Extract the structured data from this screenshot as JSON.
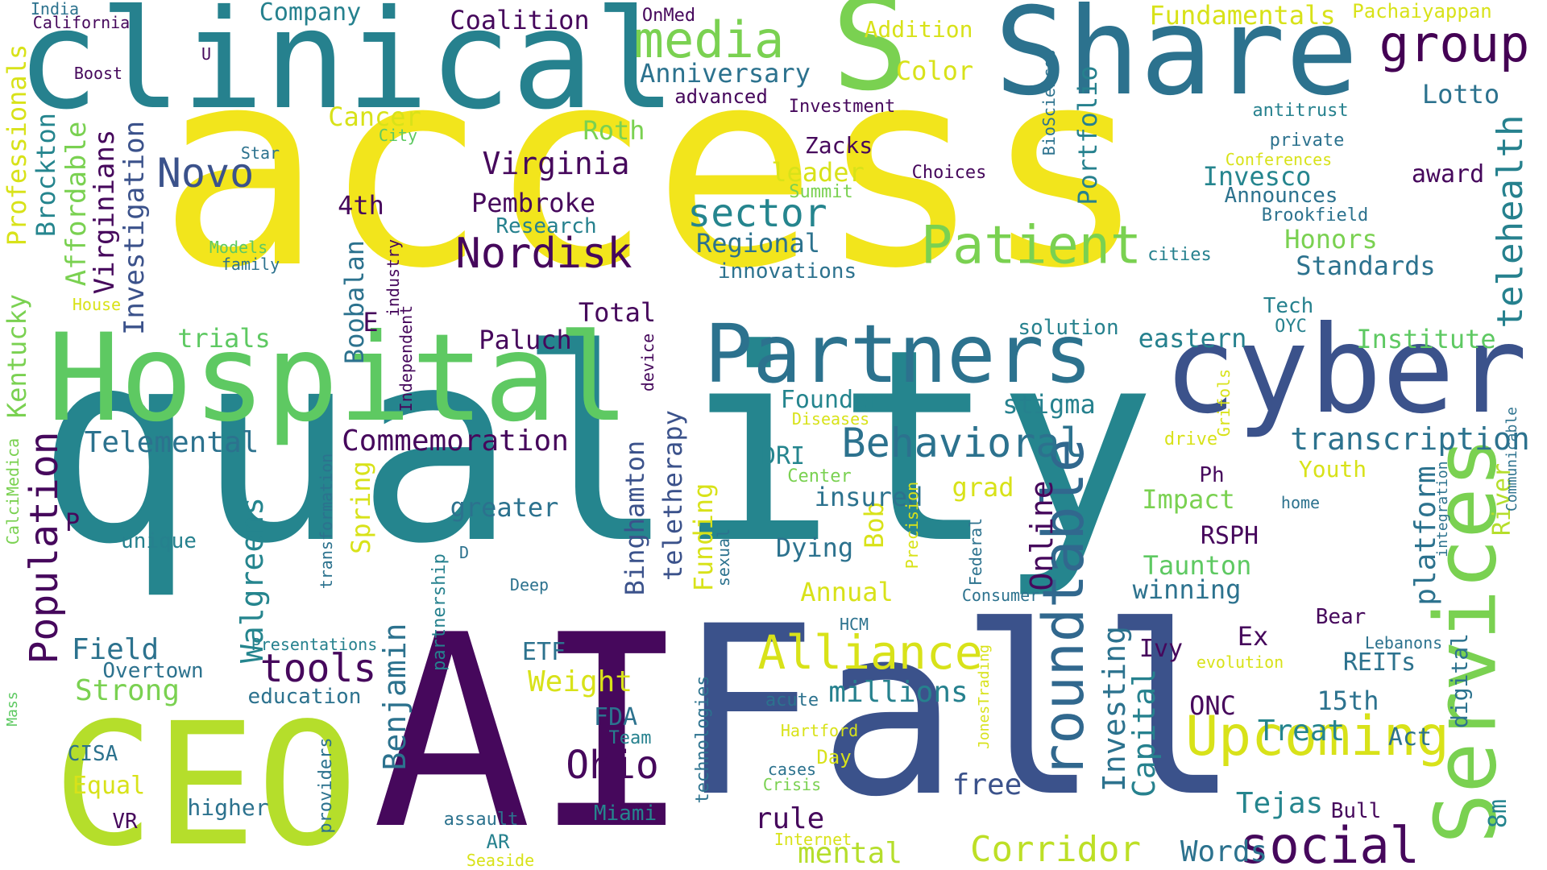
{
  "words": [
    {
      "text": "access",
      "color": "#f2e51c",
      "rot": 0
    },
    {
      "text": "quality",
      "color": "#25858e",
      "rot": 0
    },
    {
      "text": "AI",
      "color": "#46085c",
      "rot": 0
    },
    {
      "text": "Fall",
      "color": "#3b528b",
      "rot": 0
    },
    {
      "text": "CEO",
      "color": "#b5de2b",
      "rot": 0
    },
    {
      "text": "clinical",
      "color": "#26818e",
      "rot": 0
    },
    {
      "text": "Share",
      "color": "#2c728e",
      "rot": 0
    },
    {
      "text": "S",
      "color": "#7ad151",
      "rot": 0
    },
    {
      "text": "Hospital",
      "color": "#5ec962",
      "rot": 0
    },
    {
      "text": "cyber",
      "color": "#3b528b",
      "rot": 0
    },
    {
      "text": "Partners",
      "color": "#2c728e",
      "rot": 0
    },
    {
      "text": "Services",
      "color": "#7ad151",
      "rot": 90
    },
    {
      "text": "roundtable",
      "color": "#31688e",
      "rot": 90
    },
    {
      "text": "Upcoming",
      "color": "#d8e219",
      "rot": 0
    },
    {
      "text": "Alliance",
      "color": "#d8e219",
      "rot": 0
    },
    {
      "text": "Patient",
      "color": "#7ad151",
      "rot": 0
    },
    {
      "text": "group",
      "color": "#440154",
      "rot": 0
    },
    {
      "text": "media",
      "color": "#7ad151",
      "rot": 0
    },
    {
      "text": "social",
      "color": "#46085c",
      "rot": 0
    },
    {
      "text": "Corridor",
      "color": "#bddf26",
      "rot": 0
    },
    {
      "text": "Population",
      "color": "#46085c",
      "rot": 90
    },
    {
      "text": "Nordisk",
      "color": "#46085c",
      "rot": 0
    },
    {
      "text": "Behavioral",
      "color": "#2c728e",
      "rot": 0
    },
    {
      "text": "telehealth",
      "color": "#26818e",
      "rot": 90
    },
    {
      "text": "sector",
      "color": "#25858e",
      "rot": 0
    },
    {
      "text": "Novo",
      "color": "#3b528b",
      "rot": 0
    },
    {
      "text": "Ohio",
      "color": "#46085c",
      "rot": 0
    },
    {
      "text": "tools",
      "color": "#46085c",
      "rot": 0
    },
    {
      "text": "Investing",
      "color": "#2c728e",
      "rot": 90
    },
    {
      "text": "Capital",
      "color": "#26818e",
      "rot": 90
    },
    {
      "text": "Walgreens",
      "color": "#25858e",
      "rot": 90
    },
    {
      "text": "Benjamin",
      "color": "#2c728e",
      "rot": 90
    },
    {
      "text": "Online",
      "color": "#46085c",
      "rot": 90
    },
    {
      "text": "platform",
      "color": "#2c728e",
      "rot": 90
    },
    {
      "text": "transcription",
      "color": "#2c728e",
      "rot": 0
    },
    {
      "text": "Virginia",
      "color": "#46085c",
      "rot": 0
    },
    {
      "text": "Commemoration",
      "color": "#46085c",
      "rot": 0
    },
    {
      "text": "Telemental",
      "color": "#2c728e",
      "rot": 0
    },
    {
      "text": "Strong",
      "color": "#7ad151",
      "rot": 0
    },
    {
      "text": "Field",
      "color": "#2c728e",
      "rot": 0
    },
    {
      "text": "Weight",
      "color": "#d8e219",
      "rot": 0
    },
    {
      "text": "Tejas",
      "color": "#25858e",
      "rot": 0
    },
    {
      "text": "Treat",
      "color": "#25858e",
      "rot": 0
    },
    {
      "text": "Words",
      "color": "#2c728e",
      "rot": 0
    },
    {
      "text": "mental",
      "color": "#b5de2b",
      "rot": 0
    },
    {
      "text": "free",
      "color": "#3b528b",
      "rot": 0
    },
    {
      "text": "rule",
      "color": "#46085c",
      "rot": 0
    },
    {
      "text": "millions",
      "color": "#26818e",
      "rot": 0
    },
    {
      "text": "Affordable",
      "color": "#7ad151",
      "rot": 90
    },
    {
      "text": "Virginians",
      "color": "#46085c",
      "rot": 90
    },
    {
      "text": "Investigation",
      "color": "#3b528b",
      "rot": 90
    },
    {
      "text": "Brockton",
      "color": "#25858e",
      "rot": 90
    },
    {
      "text": "Professionals",
      "color": "#d8e219",
      "rot": 90
    },
    {
      "text": "Kentucky",
      "color": "#7ad151",
      "rot": 90
    },
    {
      "text": "Boobalan",
      "color": "#2c728e",
      "rot": 90
    },
    {
      "text": "telehealth",
      "color": "#26818e",
      "rot": 90
    },
    {
      "text": "teletherapy",
      "color": "#3b528b",
      "rot": 90
    },
    {
      "text": "Binghamton",
      "color": "#3b528b",
      "rot": 90
    },
    {
      "text": "Funding",
      "color": "#d8e219",
      "rot": 90
    },
    {
      "text": "Bob",
      "color": "#d8e219",
      "rot": 90
    },
    {
      "text": "Spring",
      "color": "#d8e219",
      "rot": 90
    },
    {
      "text": "Portfolio",
      "color": "#26818e",
      "rot": 90
    },
    {
      "text": "digital",
      "color": "#2c728e",
      "rot": 90
    },
    {
      "text": "River",
      "color": "#b5de2b",
      "rot": 90
    },
    {
      "text": "8m",
      "color": "#25858e",
      "rot": 90
    },
    {
      "text": "Company",
      "color": "#26818e",
      "rot": 0
    },
    {
      "text": "Coalition",
      "color": "#46085c",
      "rot": 0
    },
    {
      "text": "Fundamentals",
      "color": "#d8e219",
      "rot": 0
    },
    {
      "text": "Anniversary",
      "color": "#2c728e",
      "rot": 0
    },
    {
      "text": "Color",
      "color": "#d8e219",
      "rot": 0
    },
    {
      "text": "Addition",
      "color": "#d8e219",
      "rot": 0
    },
    {
      "text": "Cancer",
      "color": "#d8e219",
      "rot": 0
    },
    {
      "text": "Roth",
      "color": "#7ad151",
      "rot": 0
    },
    {
      "text": "Lotto",
      "color": "#2c728e",
      "rot": 0
    },
    {
      "text": "Pembroke",
      "color": "#46085c",
      "rot": 0
    },
    {
      "text": "4th",
      "color": "#46085c",
      "rot": 0
    },
    {
      "text": "Regional",
      "color": "#2c728e",
      "rot": 0
    },
    {
      "text": "leader",
      "color": "#d8e219",
      "rot": 0
    },
    {
      "text": "Zacks",
      "color": "#46085c",
      "rot": 0
    },
    {
      "text": "Invesco",
      "color": "#25858e",
      "rot": 0
    },
    {
      "text": "award",
      "color": "#46085c",
      "rot": 0
    },
    {
      "text": "Honors",
      "color": "#7ad151",
      "rot": 0
    },
    {
      "text": "Standards",
      "color": "#2c728e",
      "rot": 0
    },
    {
      "text": "Total",
      "color": "#46085c",
      "rot": 0
    },
    {
      "text": "Paluch",
      "color": "#46085c",
      "rot": 0
    },
    {
      "text": "trials",
      "color": "#5ec962",
      "rot": 0
    },
    {
      "text": "eastern",
      "color": "#26818e",
      "rot": 0
    },
    {
      "text": "Institute",
      "color": "#5ec962",
      "rot": 0
    },
    {
      "text": "stigma",
      "color": "#26818e",
      "rot": 0
    },
    {
      "text": "Founder",
      "color": "#25858e",
      "rot": 0
    },
    {
      "text": "DRI",
      "color": "#25858e",
      "rot": 0
    },
    {
      "text": "insured",
      "color": "#2c728e",
      "rot": 0
    },
    {
      "text": "Dying",
      "color": "#2c728e",
      "rot": 0
    },
    {
      "text": "greater",
      "color": "#2c728e",
      "rot": 0
    },
    {
      "text": "grad",
      "color": "#d8e219",
      "rot": 0
    },
    {
      "text": "Impact",
      "color": "#7ad151",
      "rot": 0
    },
    {
      "text": "RSPH",
      "color": "#46085c",
      "rot": 0
    },
    {
      "text": "Taunton",
      "color": "#5ec962",
      "rot": 0
    },
    {
      "text": "winning",
      "color": "#2c728e",
      "rot": 0
    },
    {
      "text": "Annual",
      "color": "#d8e219",
      "rot": 0
    },
    {
      "text": "ETF",
      "color": "#2c728e",
      "rot": 0
    },
    {
      "text": "FDA",
      "color": "#2c728e",
      "rot": 0
    },
    {
      "text": "Ex",
      "color": "#46085c",
      "rot": 0
    },
    {
      "text": "Ivy",
      "color": "#46085c",
      "rot": 0
    },
    {
      "text": "ONC",
      "color": "#46085c",
      "rot": 0
    },
    {
      "text": "15th",
      "color": "#2c728e",
      "rot": 0
    },
    {
      "text": "REITs",
      "color": "#2c728e",
      "rot": 0
    },
    {
      "text": "Act",
      "color": "#2c728e",
      "rot": 0
    },
    {
      "text": "Bear",
      "color": "#46085c",
      "rot": 0
    },
    {
      "text": "Youth",
      "color": "#d8e219",
      "rot": 0
    },
    {
      "text": "Bull",
      "color": "#46085c",
      "rot": 0
    },
    {
      "text": "Equal",
      "color": "#d8e219",
      "rot": 0
    },
    {
      "text": "E",
      "color": "#46085c",
      "rot": 0
    },
    {
      "text": "P",
      "color": "#46085c",
      "rot": 0
    },
    {
      "text": "Ph",
      "color": "#46085c",
      "rot": 0
    },
    {
      "text": "CISA",
      "color": "#2c728e",
      "rot": 0
    },
    {
      "text": "VR",
      "color": "#46085c",
      "rot": 0
    },
    {
      "text": "higher",
      "color": "#2c728e",
      "rot": 0
    },
    {
      "text": "education",
      "color": "#2c728e",
      "rot": 0
    },
    {
      "text": "Overtown",
      "color": "#2c728e",
      "rot": 0
    },
    {
      "text": "unique",
      "color": "#26818e",
      "rot": 0
    },
    {
      "text": "Presentations",
      "color": "#26818e",
      "rot": 0
    },
    {
      "text": "Deep",
      "color": "#2c728e",
      "rot": 0
    },
    {
      "text": "Miami",
      "color": "#25858e",
      "rot": 0
    },
    {
      "text": "Team",
      "color": "#26818e",
      "rot": 0
    },
    {
      "text": "AR",
      "color": "#26818e",
      "rot": 0
    },
    {
      "text": "assault",
      "color": "#2c728e",
      "rot": 0
    },
    {
      "text": "Seaside",
      "color": "#d8e219",
      "rot": 0
    },
    {
      "text": "Internet",
      "color": "#d8e219",
      "rot": 0
    },
    {
      "text": "cases",
      "color": "#2c728e",
      "rot": 0
    },
    {
      "text": "Crisis",
      "color": "#7ad151",
      "rot": 0
    },
    {
      "text": "Day",
      "color": "#d8e219",
      "rot": 0
    },
    {
      "text": "Hartford",
      "color": "#d8e219",
      "rot": 0
    },
    {
      "text": "acute",
      "color": "#2c728e",
      "rot": 0
    },
    {
      "text": "HCM",
      "color": "#2c728e",
      "rot": 0
    },
    {
      "text": "Center",
      "color": "#7ad151",
      "rot": 0
    },
    {
      "text": "Diseases",
      "color": "#d8e219",
      "rot": 0
    },
    {
      "text": "drive",
      "color": "#d8e219",
      "rot": 0
    },
    {
      "text": "Consumer",
      "color": "#2c728e",
      "rot": 0
    },
    {
      "text": "home",
      "color": "#2c728e",
      "rot": 0
    },
    {
      "text": "evolution",
      "color": "#d8e219",
      "rot": 0
    },
    {
      "text": "Lebanons",
      "color": "#2c728e",
      "rot": 0
    },
    {
      "text": "solution",
      "color": "#26818e",
      "rot": 0
    },
    {
      "text": "OYC",
      "color": "#26818e",
      "rot": 0
    },
    {
      "text": "Tech",
      "color": "#26818e",
      "rot": 0
    },
    {
      "text": "cities",
      "color": "#26818e",
      "rot": 0
    },
    {
      "text": "innovations",
      "color": "#2c728e",
      "rot": 0
    },
    {
      "text": "Research",
      "color": "#26818e",
      "rot": 0
    },
    {
      "text": "Choices",
      "color": "#46085c",
      "rot": 0
    },
    {
      "text": "Summit",
      "color": "#7ad151",
      "rot": 0
    },
    {
      "text": "Announces",
      "color": "#2c728e",
      "rot": 0
    },
    {
      "text": "Brookfield",
      "color": "#2c728e",
      "rot": 0
    },
    {
      "text": "Conferences",
      "color": "#d8e219",
      "rot": 0
    },
    {
      "text": "private",
      "color": "#2c728e",
      "rot": 0
    },
    {
      "text": "antitrust",
      "color": "#26818e",
      "rot": 0
    },
    {
      "text": "Investment",
      "color": "#46085c",
      "rot": 0
    },
    {
      "text": "advanced",
      "color": "#46085c",
      "rot": 0
    },
    {
      "text": "OnMed",
      "color": "#46085c",
      "rot": 0
    },
    {
      "text": "Pachaiyappan",
      "color": "#d8e219",
      "rot": 0
    },
    {
      "text": "India",
      "color": "#2c728e",
      "rot": 0
    },
    {
      "text": "California",
      "color": "#46085c",
      "rot": 0
    },
    {
      "text": "U",
      "color": "#46085c",
      "rot": 0
    },
    {
      "text": "Boost",
      "color": "#46085c",
      "rot": 0
    },
    {
      "text": "Star",
      "color": "#2c728e",
      "rot": 0
    },
    {
      "text": "City",
      "color": "#5ec962",
      "rot": 0
    },
    {
      "text": "Models",
      "color": "#5ec962",
      "rot": 0
    },
    {
      "text": "family",
      "color": "#2c728e",
      "rot": 0
    },
    {
      "text": "House",
      "color": "#d8e219",
      "rot": 0
    },
    {
      "text": "BioSciences",
      "color": "#2c728e",
      "rot": 90
    },
    {
      "text": "industry",
      "color": "#46085c",
      "rot": 90
    },
    {
      "text": "Independent",
      "color": "#46085c",
      "rot": 90
    },
    {
      "text": "device",
      "color": "#46085c",
      "rot": 90
    },
    {
      "text": "transformation",
      "color": "#2c728e",
      "rot": 90
    },
    {
      "text": "partnership",
      "color": "#26818e",
      "rot": 90
    },
    {
      "text": "D",
      "color": "#2c728e",
      "rot": 0
    },
    {
      "text": "sexual",
      "color": "#2c728e",
      "rot": 90
    },
    {
      "text": "technologies",
      "color": "#2c728e",
      "rot": 90
    },
    {
      "text": "providers",
      "color": "#2c728e",
      "rot": 90
    },
    {
      "text": "Precision",
      "color": "#d8e219",
      "rot": 90
    },
    {
      "text": "Federal",
      "color": "#2c728e",
      "rot": 90
    },
    {
      "text": "JonesTrading",
      "color": "#d8e219",
      "rot": 90
    },
    {
      "text": "Grifols",
      "color": "#d8e219",
      "rot": 90
    },
    {
      "text": "integration",
      "color": "#2c728e",
      "rot": 90
    },
    {
      "text": "Communicable",
      "color": "#2c728e",
      "rot": 90
    },
    {
      "text": "CalciMedica",
      "color": "#7ad151",
      "rot": 90
    },
    {
      "text": "Mass",
      "color": "#5ec962",
      "rot": 90
    }
  ]
}
